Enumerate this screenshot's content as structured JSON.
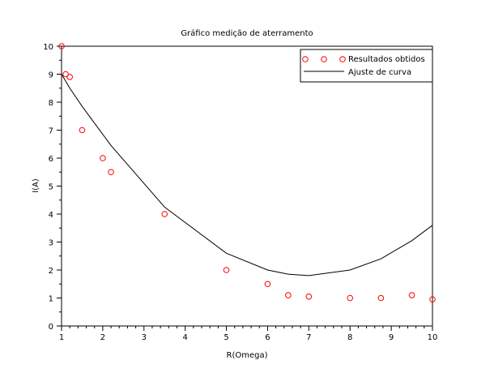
{
  "chart_data": {
    "type": "scatter",
    "title": "Gráfico medição de aterramento",
    "xlabel": "R(Omega)",
    "ylabel": "I(A)",
    "xlim": [
      1,
      10
    ],
    "ylim": [
      0,
      10
    ],
    "xticks": [
      "1",
      "2",
      "3",
      "4",
      "5",
      "6",
      "7",
      "8",
      "9",
      "10"
    ],
    "yticks": [
      "0",
      "1",
      "2",
      "3",
      "4",
      "5",
      "6",
      "7",
      "8",
      "9",
      "10"
    ],
    "grid": false,
    "legend_position": "top-right",
    "series": [
      {
        "name": "Resultados obtidos",
        "kind": "scatter",
        "marker": "circle",
        "color": "#ff0000",
        "x": [
          1.0,
          1.1,
          1.2,
          1.5,
          2.0,
          2.2,
          3.5,
          5.0,
          6.0,
          6.5,
          7.0,
          8.0,
          8.75,
          9.5,
          10.0
        ],
        "y": [
          10.0,
          9.0,
          8.9,
          7.0,
          6.0,
          5.5,
          4.0,
          2.0,
          1.5,
          1.1,
          1.05,
          1.0,
          1.0,
          1.1,
          0.95
        ]
      },
      {
        "name": "Ajuste de curva",
        "kind": "line",
        "color": "#000000",
        "x": [
          1.0,
          1.1,
          1.2,
          1.5,
          2.0,
          2.2,
          3.5,
          5.0,
          6.0,
          6.5,
          7.0,
          8.0,
          8.75,
          9.5,
          10.0
        ],
        "y": [
          9.0,
          8.75,
          8.5,
          7.85,
          6.85,
          6.45,
          4.25,
          2.6,
          2.0,
          1.85,
          1.8,
          2.0,
          2.4,
          3.05,
          3.6
        ]
      }
    ]
  }
}
